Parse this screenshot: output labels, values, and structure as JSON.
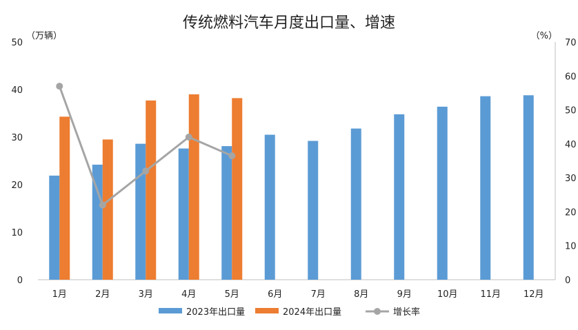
{
  "chart_data": {
    "type": "bar",
    "title": "传统燃料汽车月度出口量、增速",
    "left_axis_unit": "（万辆）",
    "right_axis_unit": "（%）",
    "categories": [
      "1月",
      "2月",
      "3月",
      "4月",
      "5月",
      "6月",
      "7月",
      "8月",
      "9月",
      "10月",
      "11月",
      "12月"
    ],
    "left_ylim": [
      0,
      50
    ],
    "left_yticks": [
      0,
      10,
      20,
      30,
      40,
      50
    ],
    "right_ylim": [
      0,
      70
    ],
    "right_yticks": [
      0,
      10,
      20,
      30,
      40,
      50,
      60,
      70
    ],
    "series": [
      {
        "name": "2023年出口量",
        "type": "bar",
        "axis": "left",
        "color": "#5B9BD5",
        "values": [
          21.9,
          24.2,
          28.6,
          27.6,
          28.1,
          30.5,
          29.2,
          31.8,
          34.8,
          36.4,
          38.6,
          38.8
        ]
      },
      {
        "name": "2024年出口量",
        "type": "bar",
        "axis": "left",
        "color": "#ED7D31",
        "values": [
          34.3,
          29.5,
          37.7,
          39.0,
          38.2,
          null,
          null,
          null,
          null,
          null,
          null,
          null
        ]
      },
      {
        "name": "增长率",
        "type": "line",
        "axis": "right",
        "color": "#A5A5A5",
        "values": [
          57.0,
          22.0,
          32.0,
          42.0,
          36.5,
          null,
          null,
          null,
          null,
          null,
          null,
          null
        ]
      }
    ],
    "grid": false,
    "legend_position": "bottom"
  }
}
